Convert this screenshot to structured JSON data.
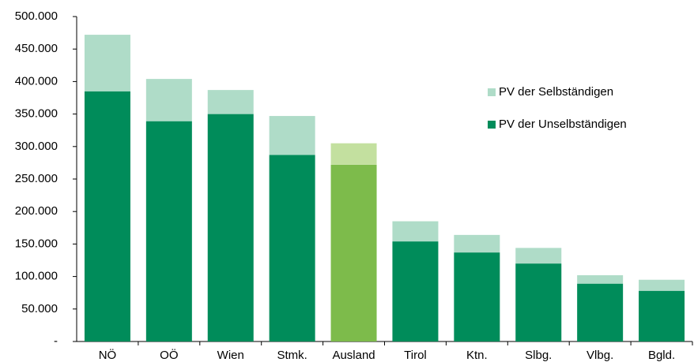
{
  "chart_data": {
    "type": "stacked_bar",
    "categories": [
      "NÖ",
      "OÖ",
      "Wien",
      "Stmk.",
      "Ausland",
      "Tirol",
      "Ktn.",
      "Slbg.",
      "Vlbg.",
      "Bgld."
    ],
    "series": [
      {
        "name": "PV der Unselbständigen",
        "color": "#008c5a",
        "colors": [
          "#008c5a",
          "#008c5a",
          "#008c5a",
          "#008c5a",
          "#7dbb4b",
          "#008c5a",
          "#008c5a",
          "#008c5a",
          "#008c5a",
          "#008c5a"
        ],
        "values": [
          385000,
          339000,
          350000,
          287000,
          272000,
          154000,
          137000,
          120000,
          89000,
          78000
        ]
      },
      {
        "name": "PV der Selbständigen",
        "color": "#afdcc8",
        "colors": [
          "#afdcc8",
          "#afdcc8",
          "#afdcc8",
          "#afdcc8",
          "#c3e09f",
          "#afdcc8",
          "#afdcc8",
          "#afdcc8",
          "#afdcc8",
          "#afdcc8"
        ],
        "values": [
          87000,
          65000,
          37000,
          60000,
          33000,
          31000,
          27000,
          24000,
          13000,
          17000
        ]
      }
    ],
    "ylim": [
      0,
      500000
    ],
    "yticks": [
      {
        "value": 0,
        "label": "-"
      },
      {
        "value": 50000,
        "label": "50.000"
      },
      {
        "value": 100000,
        "label": "100.000"
      },
      {
        "value": 150000,
        "label": "150.000"
      },
      {
        "value": 200000,
        "label": "200.000"
      },
      {
        "value": 250000,
        "label": "250.000"
      },
      {
        "value": 300000,
        "label": "300.000"
      },
      {
        "value": 350000,
        "label": "350.000"
      },
      {
        "value": 400000,
        "label": "400.000"
      },
      {
        "value": 450000,
        "label": "450.000"
      },
      {
        "value": 500000,
        "label": "500.000"
      }
    ],
    "legend": "right"
  }
}
